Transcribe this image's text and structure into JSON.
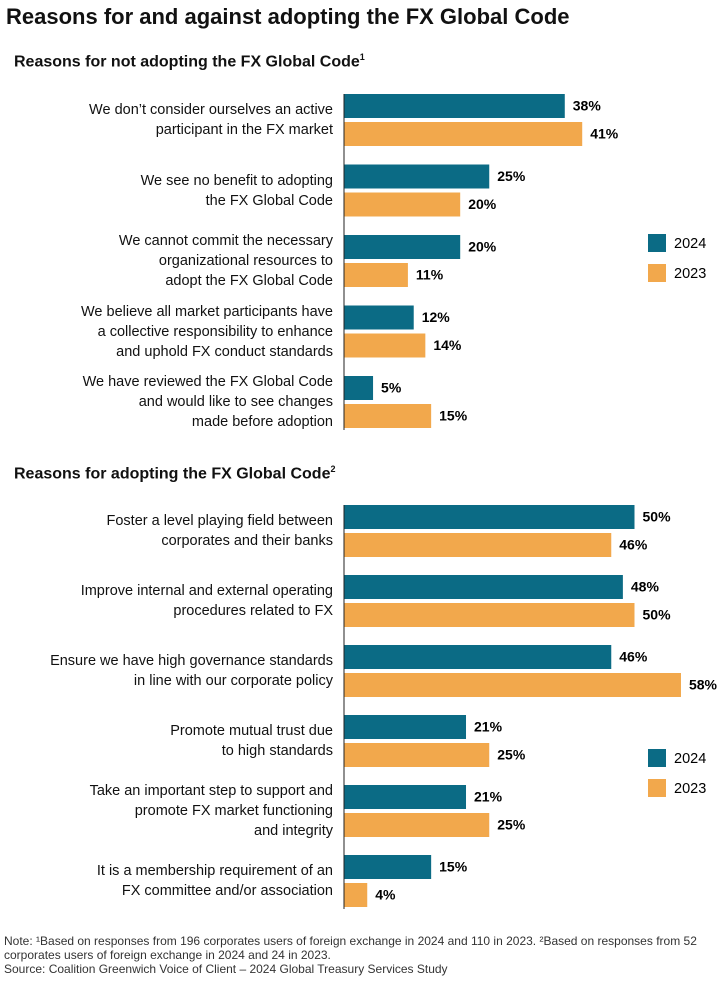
{
  "title": "Reasons for and against adopting the FX Global Code",
  "chart_data": [
    {
      "type": "bar",
      "orientation": "horizontal",
      "subtitle": "Reasons for not adopting the FX Global Code",
      "subtitle_marker": "1",
      "categories": [
        "We don’t consider ourselves an active\nparticipant in the FX market",
        "We see no benefit to adopting\nthe FX Global Code",
        "We cannot commit the necessary\norganizational resources to\nadopt the FX Global Code",
        "We believe all market participants have\na collective responsibility to enhance\nand uphold FX conduct standards",
        "We have reviewed the FX Global Code\nand would like to see changes\nmade before adoption"
      ],
      "series": [
        {
          "name": "2024",
          "color": "#0b6b85",
          "values": [
            38,
            25,
            20,
            12,
            5
          ],
          "value_labels": [
            "38%",
            "25%",
            "20%",
            "12%",
            "5%"
          ]
        },
        {
          "name": "2023",
          "color": "#f2a84c",
          "values": [
            41,
            20,
            11,
            14,
            15
          ],
          "value_labels": [
            "41%",
            "20%",
            "11%",
            "14%",
            "15%"
          ]
        }
      ],
      "legend": "right"
    },
    {
      "type": "bar",
      "orientation": "horizontal",
      "subtitle": "Reasons for adopting the FX Global Code",
      "subtitle_marker": "2",
      "categories": [
        "Foster a level playing field between\ncorporates and their banks",
        "Improve internal and external operating\nprocedures related to FX",
        "Ensure we have high governance standards\nin line with our corporate policy",
        "Promote mutual trust due\nto high standards",
        "Take an important step to support and\npromote FX market functioning\nand integrity",
        "It is a membership requirement of an\nFX committee and/or association"
      ],
      "series": [
        {
          "name": "2024",
          "color": "#0b6b85",
          "values": [
            50,
            48,
            46,
            21,
            21,
            15
          ],
          "value_labels": [
            "50%",
            "48%",
            "46%",
            "21%",
            "21%",
            "15%"
          ]
        },
        {
          "name": "2023",
          "color": "#f2a84c",
          "values": [
            46,
            50,
            58,
            25,
            25,
            4
          ],
          "value_labels": [
            "46%",
            "50%",
            "58%",
            "25%",
            "25%",
            "4%"
          ]
        }
      ],
      "legend": "right"
    }
  ],
  "note": "Note: ¹Based on responses from 196 corporates users of foreign exchange in 2024 and 110 in 2023. ²Based on responses from 52 corporates users of foreign exchange in 2024 and 24 in 2023.",
  "source": "Source: Coalition Greenwich Voice of Client – 2024 Global Treasury Services Study"
}
